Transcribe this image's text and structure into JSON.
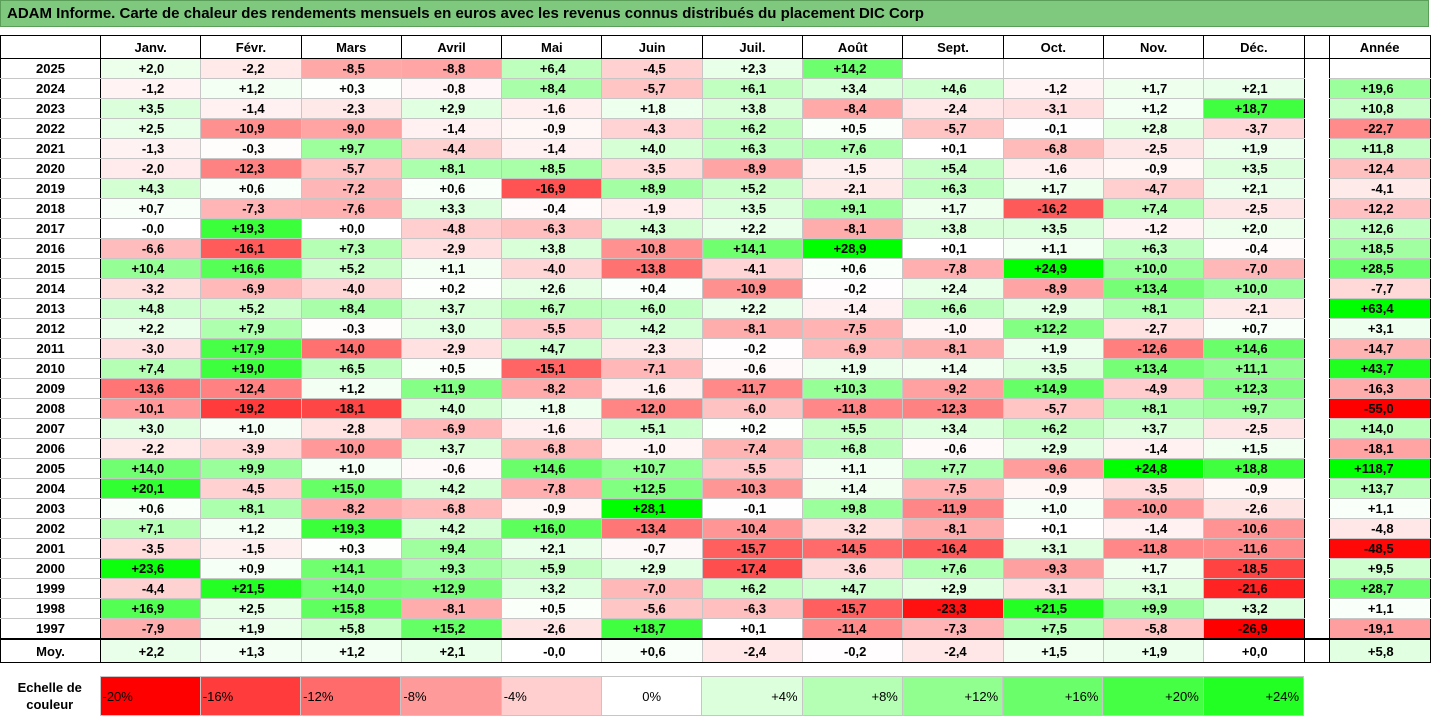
{
  "title": "ADAM Informe. Carte de chaleur des rendements mensuels en euros avec les revenus connus distribués du placement DIC Corp",
  "chart_data": {
    "type": "heatmap",
    "columns": [
      "Janv.",
      "Févr.",
      "Mars",
      "Avril",
      "Mai",
      "Juin",
      "Juil.",
      "Août",
      "Sept.",
      "Oct.",
      "Nov.",
      "Déc."
    ],
    "annual_label": "Année",
    "rows": [
      {
        "year": "2025",
        "values": [
          "+2,0",
          "-2,2",
          "-8,5",
          "-8,8",
          "+6,4",
          "-4,5",
          "+2,3",
          "+14,2",
          "",
          "",
          "",
          ""
        ],
        "annual": ""
      },
      {
        "year": "2024",
        "values": [
          "-1,2",
          "+1,2",
          "+0,3",
          "-0,8",
          "+8,4",
          "-5,7",
          "+6,1",
          "+3,4",
          "+4,6",
          "-1,2",
          "+1,7",
          "+2,1"
        ],
        "annual": "+19,6"
      },
      {
        "year": "2023",
        "values": [
          "+3,5",
          "-1,4",
          "-2,3",
          "+2,9",
          "-1,6",
          "+1,8",
          "+3,8",
          "-8,4",
          "-2,4",
          "-3,1",
          "+1,2",
          "+18,7"
        ],
        "annual": "+10,8"
      },
      {
        "year": "2022",
        "values": [
          "+2,5",
          "-10,9",
          "-9,0",
          "-1,4",
          "-0,9",
          "-4,3",
          "+6,2",
          "+0,5",
          "-5,7",
          "-0,1",
          "+2,8",
          "-3,7"
        ],
        "annual": "-22,7"
      },
      {
        "year": "2021",
        "values": [
          "-1,3",
          "-0,3",
          "+9,7",
          "-4,4",
          "-1,4",
          "+4,0",
          "+6,3",
          "+7,6",
          "+0,1",
          "-6,8",
          "-2,5",
          "+1,9"
        ],
        "annual": "+11,8"
      },
      {
        "year": "2020",
        "values": [
          "-2,0",
          "-12,3",
          "-5,7",
          "+8,1",
          "+8,5",
          "-3,5",
          "-8,9",
          "-1,5",
          "+5,4",
          "-1,6",
          "-0,9",
          "+3,5"
        ],
        "annual": "-12,4"
      },
      {
        "year": "2019",
        "values": [
          "+4,3",
          "+0,6",
          "-7,2",
          "+0,6",
          "-16,9",
          "+8,9",
          "+5,2",
          "-2,1",
          "+6,3",
          "+1,7",
          "-4,7",
          "+2,1"
        ],
        "annual": "-4,1"
      },
      {
        "year": "2018",
        "values": [
          "+0,7",
          "-7,3",
          "-7,6",
          "+3,3",
          "-0,4",
          "-1,9",
          "+3,5",
          "+9,1",
          "+1,7",
          "-16,2",
          "+7,4",
          "-2,5"
        ],
        "annual": "-12,2"
      },
      {
        "year": "2017",
        "values": [
          "-0,0",
          "+19,3",
          "+0,0",
          "-4,8",
          "-6,3",
          "+4,3",
          "+2,2",
          "-8,1",
          "+3,8",
          "+3,5",
          "-1,2",
          "+2,0"
        ],
        "annual": "+12,6"
      },
      {
        "year": "2016",
        "values": [
          "-6,6",
          "-16,1",
          "+7,3",
          "-2,9",
          "+3,8",
          "-10,8",
          "+14,1",
          "+28,9",
          "+0,1",
          "+1,1",
          "+6,3",
          "-0,4"
        ],
        "annual": "+18,5"
      },
      {
        "year": "2015",
        "values": [
          "+10,4",
          "+16,6",
          "+5,2",
          "+1,1",
          "-4,0",
          "-13,8",
          "-4,1",
          "+0,6",
          "-7,8",
          "+24,9",
          "+10,0",
          "-7,0"
        ],
        "annual": "+28,5"
      },
      {
        "year": "2014",
        "values": [
          "-3,2",
          "-6,9",
          "-4,0",
          "+0,2",
          "+2,6",
          "+0,4",
          "-10,9",
          "-0,2",
          "+2,4",
          "-8,9",
          "+13,4",
          "+10,0"
        ],
        "annual": "-7,7"
      },
      {
        "year": "2013",
        "values": [
          "+4,8",
          "+5,2",
          "+8,4",
          "+3,7",
          "+6,7",
          "+6,0",
          "+2,2",
          "-1,4",
          "+6,6",
          "+2,9",
          "+8,1",
          "-2,1"
        ],
        "annual": "+63,4"
      },
      {
        "year": "2012",
        "values": [
          "+2,2",
          "+7,9",
          "-0,3",
          "+3,0",
          "-5,5",
          "+4,2",
          "-8,1",
          "-7,5",
          "-1,0",
          "+12,2",
          "-2,7",
          "+0,7"
        ],
        "annual": "+3,1"
      },
      {
        "year": "2011",
        "values": [
          "-3,0",
          "+17,9",
          "-14,0",
          "-2,9",
          "+4,7",
          "-2,3",
          "-0,2",
          "-6,9",
          "-8,1",
          "+1,9",
          "-12,6",
          "+14,6"
        ],
        "annual": "-14,7"
      },
      {
        "year": "2010",
        "values": [
          "+7,4",
          "+19,0",
          "+6,5",
          "+0,5",
          "-15,1",
          "-7,1",
          "-0,6",
          "+1,9",
          "+1,4",
          "+3,5",
          "+13,4",
          "+11,1"
        ],
        "annual": "+43,7"
      },
      {
        "year": "2009",
        "values": [
          "-13,6",
          "-12,4",
          "+1,2",
          "+11,9",
          "-8,2",
          "-1,6",
          "-11,7",
          "+10,3",
          "-9,2",
          "+14,9",
          "-4,9",
          "+12,3"
        ],
        "annual": "-16,3"
      },
      {
        "year": "2008",
        "values": [
          "-10,1",
          "-19,2",
          "-18,1",
          "+4,0",
          "+1,8",
          "-12,0",
          "-6,0",
          "-11,8",
          "-12,3",
          "-5,7",
          "+8,1",
          "+9,7"
        ],
        "annual": "-55,0"
      },
      {
        "year": "2007",
        "values": [
          "+3,0",
          "+1,0",
          "-2,8",
          "-6,9",
          "-1,6",
          "+5,1",
          "+0,2",
          "+5,5",
          "+3,4",
          "+6,2",
          "+3,7",
          "-2,5"
        ],
        "annual": "+14,0"
      },
      {
        "year": "2006",
        "values": [
          "-2,2",
          "-3,9",
          "-10,0",
          "+3,7",
          "-6,8",
          "-1,0",
          "-7,4",
          "+6,8",
          "-0,6",
          "+2,9",
          "-1,4",
          "+1,5"
        ],
        "annual": "-18,1"
      },
      {
        "year": "2005",
        "values": [
          "+14,0",
          "+9,9",
          "+1,0",
          "-0,6",
          "+14,6",
          "+10,7",
          "-5,5",
          "+1,1",
          "+7,7",
          "-9,6",
          "+24,8",
          "+18,8"
        ],
        "annual": "+118,7"
      },
      {
        "year": "2004",
        "values": [
          "+20,1",
          "-4,5",
          "+15,0",
          "+4,2",
          "-7,8",
          "+12,5",
          "-10,3",
          "+1,4",
          "-7,5",
          "-0,9",
          "-3,5",
          "-0,9"
        ],
        "annual": "+13,7"
      },
      {
        "year": "2003",
        "values": [
          "+0,6",
          "+8,1",
          "-8,2",
          "-6,8",
          "-0,9",
          "+28,1",
          "-0,1",
          "+9,8",
          "-11,9",
          "+1,0",
          "-10,0",
          "-2,6"
        ],
        "annual": "+1,1"
      },
      {
        "year": "2002",
        "values": [
          "+7,1",
          "+1,2",
          "+19,3",
          "+4,2",
          "+16,0",
          "-13,4",
          "-10,4",
          "-3,2",
          "-8,1",
          "+0,1",
          "-1,4",
          "-10,6"
        ],
        "annual": "-4,8"
      },
      {
        "year": "2001",
        "values": [
          "-3,5",
          "-1,5",
          "+0,3",
          "+9,4",
          "+2,1",
          "-0,7",
          "-15,7",
          "-14,5",
          "-16,4",
          "+3,1",
          "-11,8",
          "-11,6"
        ],
        "annual": "-48,5"
      },
      {
        "year": "2000",
        "values": [
          "+23,6",
          "+0,9",
          "+14,1",
          "+9,3",
          "+5,9",
          "+2,9",
          "-17,4",
          "-3,6",
          "+7,6",
          "-9,3",
          "+1,7",
          "-18,5"
        ],
        "annual": "+9,5"
      },
      {
        "year": "1999",
        "values": [
          "-4,4",
          "+21,5",
          "+14,0",
          "+12,9",
          "+3,2",
          "-7,0",
          "+6,2",
          "+4,7",
          "+2,9",
          "-3,1",
          "+3,1",
          "-21,6"
        ],
        "annual": "+28,7"
      },
      {
        "year": "1998",
        "values": [
          "+16,9",
          "+2,5",
          "+15,8",
          "-8,1",
          "+0,5",
          "-5,6",
          "-6,3",
          "-15,7",
          "-23,3",
          "+21,5",
          "+9,9",
          "+3,2"
        ],
        "annual": "+1,1"
      },
      {
        "year": "1997",
        "values": [
          "-7,9",
          "+1,9",
          "+5,8",
          "+15,2",
          "-2,6",
          "+18,7",
          "+0,1",
          "-11,4",
          "-7,3",
          "+7,5",
          "-5,8",
          "-26,9"
        ],
        "annual": "-19,1"
      }
    ],
    "average": {
      "label": "Moy.",
      "values": [
        "+2,2",
        "+1,3",
        "+1,2",
        "+2,1",
        "-0,0",
        "+0,6",
        "-2,4",
        "-0,2",
        "-2,4",
        "+1,5",
        "+1,9",
        "+0,0"
      ],
      "annual": "+5,8"
    },
    "legend": {
      "label": "Echelle de couleur",
      "stops": [
        "-20%",
        "-16%",
        "-12%",
        "-8%",
        "-4%",
        "0%",
        "+4%",
        "+8%",
        "+12%",
        "+16%",
        "+20%",
        "+24%"
      ],
      "colors": [
        "#ff0000",
        "#ff3b3b",
        "#ff6b6b",
        "#ff9a9a",
        "#ffcfcf",
        "#ffffff",
        "#dcffdc",
        "#b4ffb4",
        "#90ff90",
        "#6aff6a",
        "#44ff44",
        "#22ff22"
      ]
    }
  }
}
